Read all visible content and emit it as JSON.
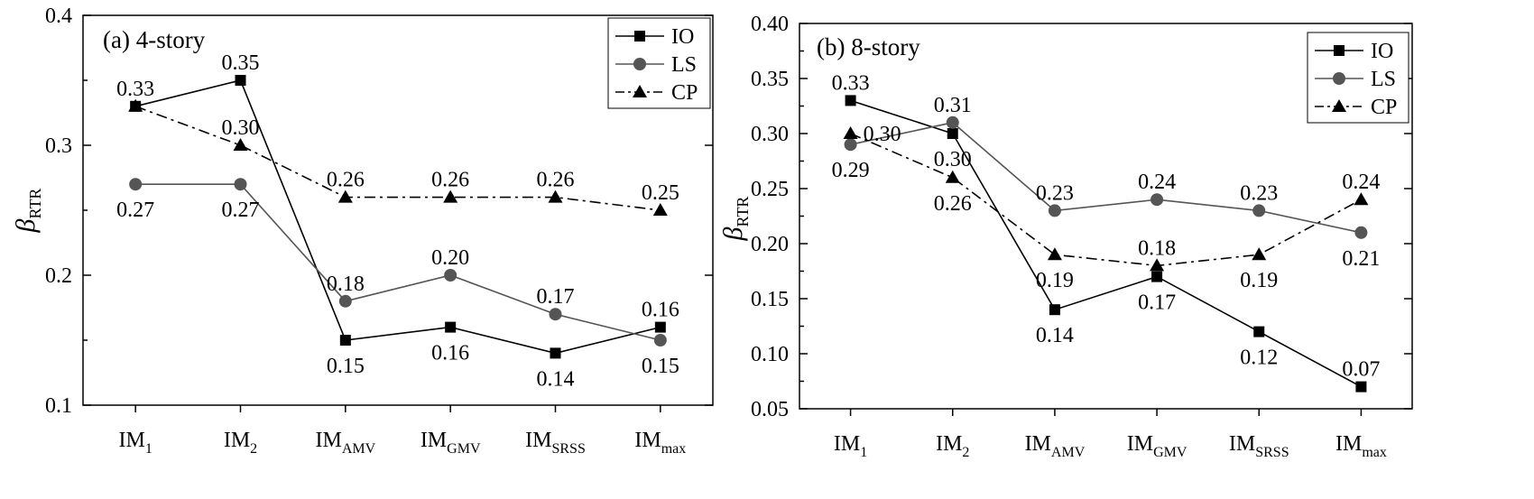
{
  "chart_data": [
    {
      "type": "line",
      "title": "(a) 4-story",
      "ylabel": {
        "symbol": "β",
        "subscript": "RTR"
      },
      "ylim": [
        0.1,
        0.4
      ],
      "yticks": [
        "0.1",
        "0.2",
        "0.3",
        "0.4"
      ],
      "ytick_values": [
        0.1,
        0.2,
        0.3,
        0.4
      ],
      "categories": [
        {
          "base": "IM",
          "sub": "1"
        },
        {
          "base": "IM",
          "sub": "2"
        },
        {
          "base": "IM",
          "sub": "AMV"
        },
        {
          "base": "IM",
          "sub": "GMV"
        },
        {
          "base": "IM",
          "sub": "SRSS"
        },
        {
          "base": "IM",
          "sub": "max"
        }
      ],
      "legend": {
        "placement": "top-right"
      },
      "series": [
        {
          "name": "IO",
          "marker": "square",
          "line": "solid",
          "color": "#000000",
          "values": [
            0.33,
            0.35,
            0.15,
            0.16,
            0.14,
            0.16
          ],
          "labels": [
            "0.33",
            "0.35",
            "0.15",
            "0.16",
            "0.14",
            "0.16"
          ],
          "label_pos": [
            "above",
            "above",
            "below",
            "below",
            "below",
            "above"
          ]
        },
        {
          "name": "LS",
          "marker": "circle",
          "line": "solid",
          "color": "#555555",
          "values": [
            0.27,
            0.27,
            0.18,
            0.2,
            0.17,
            0.15
          ],
          "labels": [
            "0.27",
            "0.27",
            "0.18",
            "0.20",
            "0.17",
            "0.15"
          ],
          "label_pos": [
            "below",
            "below",
            "above",
            "above",
            "above",
            "below"
          ]
        },
        {
          "name": "CP",
          "marker": "triangle",
          "line": "dashdot",
          "color": "#000000",
          "values": [
            0.33,
            0.3,
            0.26,
            0.26,
            0.26,
            0.25
          ],
          "labels": [
            null,
            "0.30",
            "0.26",
            "0.26",
            "0.26",
            "0.25"
          ],
          "label_pos": [
            null,
            "above",
            "above",
            "above",
            "above",
            "above"
          ]
        }
      ]
    },
    {
      "type": "line",
      "title": "(b) 8-story",
      "ylabel": {
        "symbol": "β",
        "subscript": "RTR"
      },
      "ylim": [
        0.05,
        0.4
      ],
      "yticks": [
        "0.05",
        "0.10",
        "0.15",
        "0.20",
        "0.25",
        "0.30",
        "0.35",
        "0.40"
      ],
      "ytick_values": [
        0.05,
        0.1,
        0.15,
        0.2,
        0.25,
        0.3,
        0.35,
        0.4
      ],
      "categories": [
        {
          "base": "IM",
          "sub": "1"
        },
        {
          "base": "IM",
          "sub": "2"
        },
        {
          "base": "IM",
          "sub": "AMV"
        },
        {
          "base": "IM",
          "sub": "GMV"
        },
        {
          "base": "IM",
          "sub": "SRSS"
        },
        {
          "base": "IM",
          "sub": "max"
        }
      ],
      "legend": {
        "placement": "top-right"
      },
      "series": [
        {
          "name": "IO",
          "marker": "square",
          "line": "solid",
          "color": "#000000",
          "values": [
            0.33,
            0.3,
            0.14,
            0.17,
            0.12,
            0.07
          ],
          "labels": [
            "0.33",
            "0.30",
            "0.14",
            "0.17",
            "0.12",
            "0.07"
          ],
          "label_pos": [
            "above",
            "below",
            "below",
            "below",
            "below",
            "above"
          ]
        },
        {
          "name": "LS",
          "marker": "circle",
          "line": "solid",
          "color": "#555555",
          "values": [
            0.29,
            0.31,
            0.23,
            0.24,
            0.23,
            0.21
          ],
          "labels": [
            "0.29",
            "0.31",
            "0.23",
            "0.24",
            "0.23",
            "0.21"
          ],
          "label_pos": [
            "below",
            "above",
            "above",
            "above",
            "above",
            "below"
          ]
        },
        {
          "name": "CP",
          "marker": "triangle",
          "line": "dashdot",
          "color": "#000000",
          "values": [
            0.3,
            0.26,
            0.19,
            0.18,
            0.19,
            0.24
          ],
          "labels": [
            "0.30",
            "0.26",
            "0.19",
            "0.18",
            "0.19",
            "0.24"
          ],
          "label_pos": [
            "right",
            "below",
            "below",
            "above",
            "below",
            "above"
          ]
        }
      ]
    }
  ]
}
